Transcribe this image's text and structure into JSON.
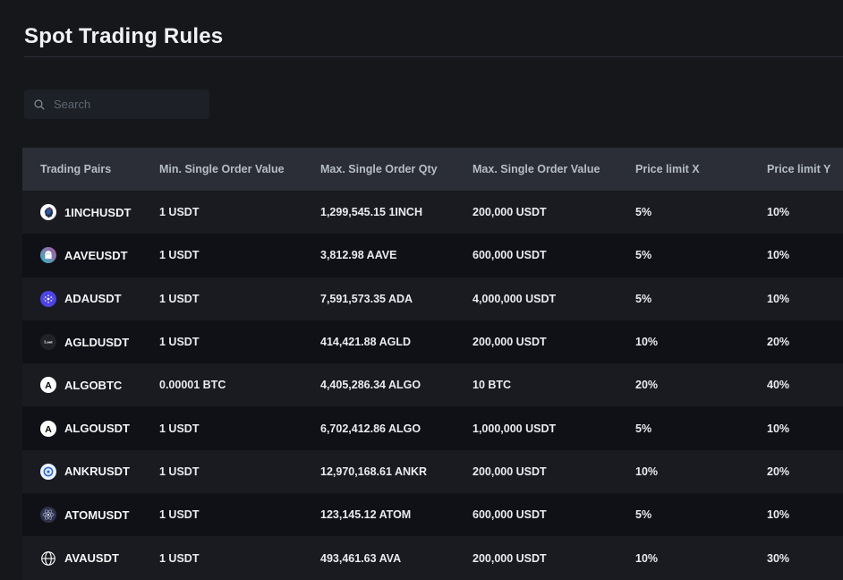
{
  "page": {
    "title": "Spot Trading Rules"
  },
  "search": {
    "placeholder": "Search",
    "icon": "search-icon"
  },
  "table": {
    "columns": [
      "Trading Pairs",
      "Min. Single Order Value",
      "Max. Single Order Qty",
      "Max. Single Order Value",
      "Price limit X",
      "Price limit Y"
    ],
    "rows": [
      {
        "icon": "1inch-icon",
        "icon_kind": "oneinch",
        "pair": "1INCHUSDT",
        "min_order_value": "1 USDT",
        "max_order_qty": "1,299,545.15 1INCH",
        "max_order_value": "200,000 USDT",
        "price_limit_x": "5%",
        "price_limit_y": "10%"
      },
      {
        "icon": "aave-icon",
        "icon_kind": "aave",
        "pair": "AAVEUSDT",
        "min_order_value": "1 USDT",
        "max_order_qty": "3,812.98 AAVE",
        "max_order_value": "600,000 USDT",
        "price_limit_x": "5%",
        "price_limit_y": "10%"
      },
      {
        "icon": "ada-icon",
        "icon_kind": "ada",
        "pair": "ADAUSDT",
        "min_order_value": "1 USDT",
        "max_order_qty": "7,591,573.35 ADA",
        "max_order_value": "4,000,000 USDT",
        "price_limit_x": "5%",
        "price_limit_y": "10%"
      },
      {
        "icon": "agld-icon",
        "icon_kind": "agld",
        "pair": "AGLDUSDT",
        "min_order_value": "1 USDT",
        "max_order_qty": "414,421.88 AGLD",
        "max_order_value": "200,000 USDT",
        "price_limit_x": "10%",
        "price_limit_y": "20%"
      },
      {
        "icon": "algo-icon",
        "icon_kind": "algo",
        "pair": "ALGOBTC",
        "min_order_value": "0.00001 BTC",
        "max_order_qty": "4,405,286.34 ALGO",
        "max_order_value": "10 BTC",
        "price_limit_x": "20%",
        "price_limit_y": "40%"
      },
      {
        "icon": "algo-icon",
        "icon_kind": "algo",
        "pair": "ALGOUSDT",
        "min_order_value": "1 USDT",
        "max_order_qty": "6,702,412.86 ALGO",
        "max_order_value": "1,000,000 USDT",
        "price_limit_x": "5%",
        "price_limit_y": "10%"
      },
      {
        "icon": "ankr-icon",
        "icon_kind": "ankr",
        "pair": "ANKRUSDT",
        "min_order_value": "1 USDT",
        "max_order_qty": "12,970,168.61 ANKR",
        "max_order_value": "200,000 USDT",
        "price_limit_x": "10%",
        "price_limit_y": "20%"
      },
      {
        "icon": "atom-icon",
        "icon_kind": "atom",
        "pair": "ATOMUSDT",
        "min_order_value": "1 USDT",
        "max_order_qty": "123,145.12 ATOM",
        "max_order_value": "600,000 USDT",
        "price_limit_x": "5%",
        "price_limit_y": "10%"
      },
      {
        "icon": "ava-icon",
        "icon_kind": "ava",
        "pair": "AVAUSDT",
        "min_order_value": "1 USDT",
        "max_order_qty": "493,461.63 AVA",
        "max_order_value": "200,000 USDT",
        "price_limit_x": "10%",
        "price_limit_y": "30%"
      }
    ]
  },
  "colors": {
    "page_bg": "#16171b",
    "header_bg": "#2b2e37",
    "row_odd": "#1a1b20",
    "row_even": "#101116",
    "cell_text": "#e9ebee",
    "header_text": "#b7bdc6",
    "title_text": "#f1f2f4",
    "placeholder_text": "#5e6673",
    "divider": "#2a2e35",
    "search_bg": "#1d2026",
    "icon_aave_gradient_from": "#2ebac6",
    "icon_aave_gradient_to": "#b6509e",
    "icon_ada_bg": "#4c43e8",
    "icon_ankr_blue": "#2c6af5",
    "icon_atom_bg": "#2e3148",
    "icon_1inch_navy": "#1b314f",
    "icon_1inch_red": "#d82122"
  }
}
